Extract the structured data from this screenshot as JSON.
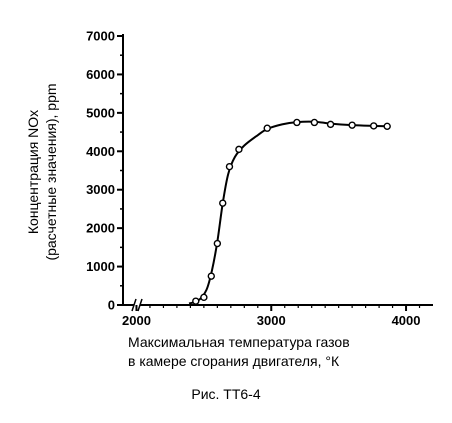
{
  "chart_data": {
    "type": "line",
    "title": "",
    "caption": "Рис. ТТ6-4",
    "xlabel_lines": [
      "Максимальная температура газов",
      "в камере сгорания двигателя, °К"
    ],
    "ylabel_lines": [
      "Концентрация NOx",
      "(расчетные значения), ppm"
    ],
    "xlim": [
      1900,
      4200
    ],
    "ylim": [
      0,
      7000
    ],
    "x_ticks": [
      2000,
      3000,
      4000
    ],
    "y_ticks": [
      0,
      1000,
      2000,
      3000,
      4000,
      5000,
      6000,
      7000
    ],
    "axis_break": "x",
    "grid": false,
    "legend": "none",
    "series": [
      {
        "x": [
          2440,
          2500,
          2555,
          2600,
          2640,
          2690,
          2760,
          2970,
          3190,
          3320,
          3440,
          3600,
          3760,
          3860
        ],
        "y": [
          100,
          200,
          750,
          1600,
          2650,
          3600,
          4050,
          4600,
          4750,
          4750,
          4700,
          4680,
          4660,
          4650
        ],
        "curve": [
          [
            2390,
            40
          ],
          [
            2460,
            120
          ],
          [
            2520,
            400
          ],
          [
            2560,
            900
          ],
          [
            2600,
            1650
          ],
          [
            2640,
            2650
          ],
          [
            2680,
            3400
          ],
          [
            2730,
            3850
          ],
          [
            2800,
            4150
          ],
          [
            2900,
            4420
          ],
          [
            2970,
            4580
          ],
          [
            3080,
            4700
          ],
          [
            3190,
            4760
          ],
          [
            3320,
            4770
          ],
          [
            3440,
            4720
          ],
          [
            3600,
            4680
          ],
          [
            3760,
            4660
          ],
          [
            3870,
            4650
          ]
        ]
      }
    ],
    "colors": {
      "line": "#000000",
      "marker_fill": "#ffffff"
    }
  }
}
